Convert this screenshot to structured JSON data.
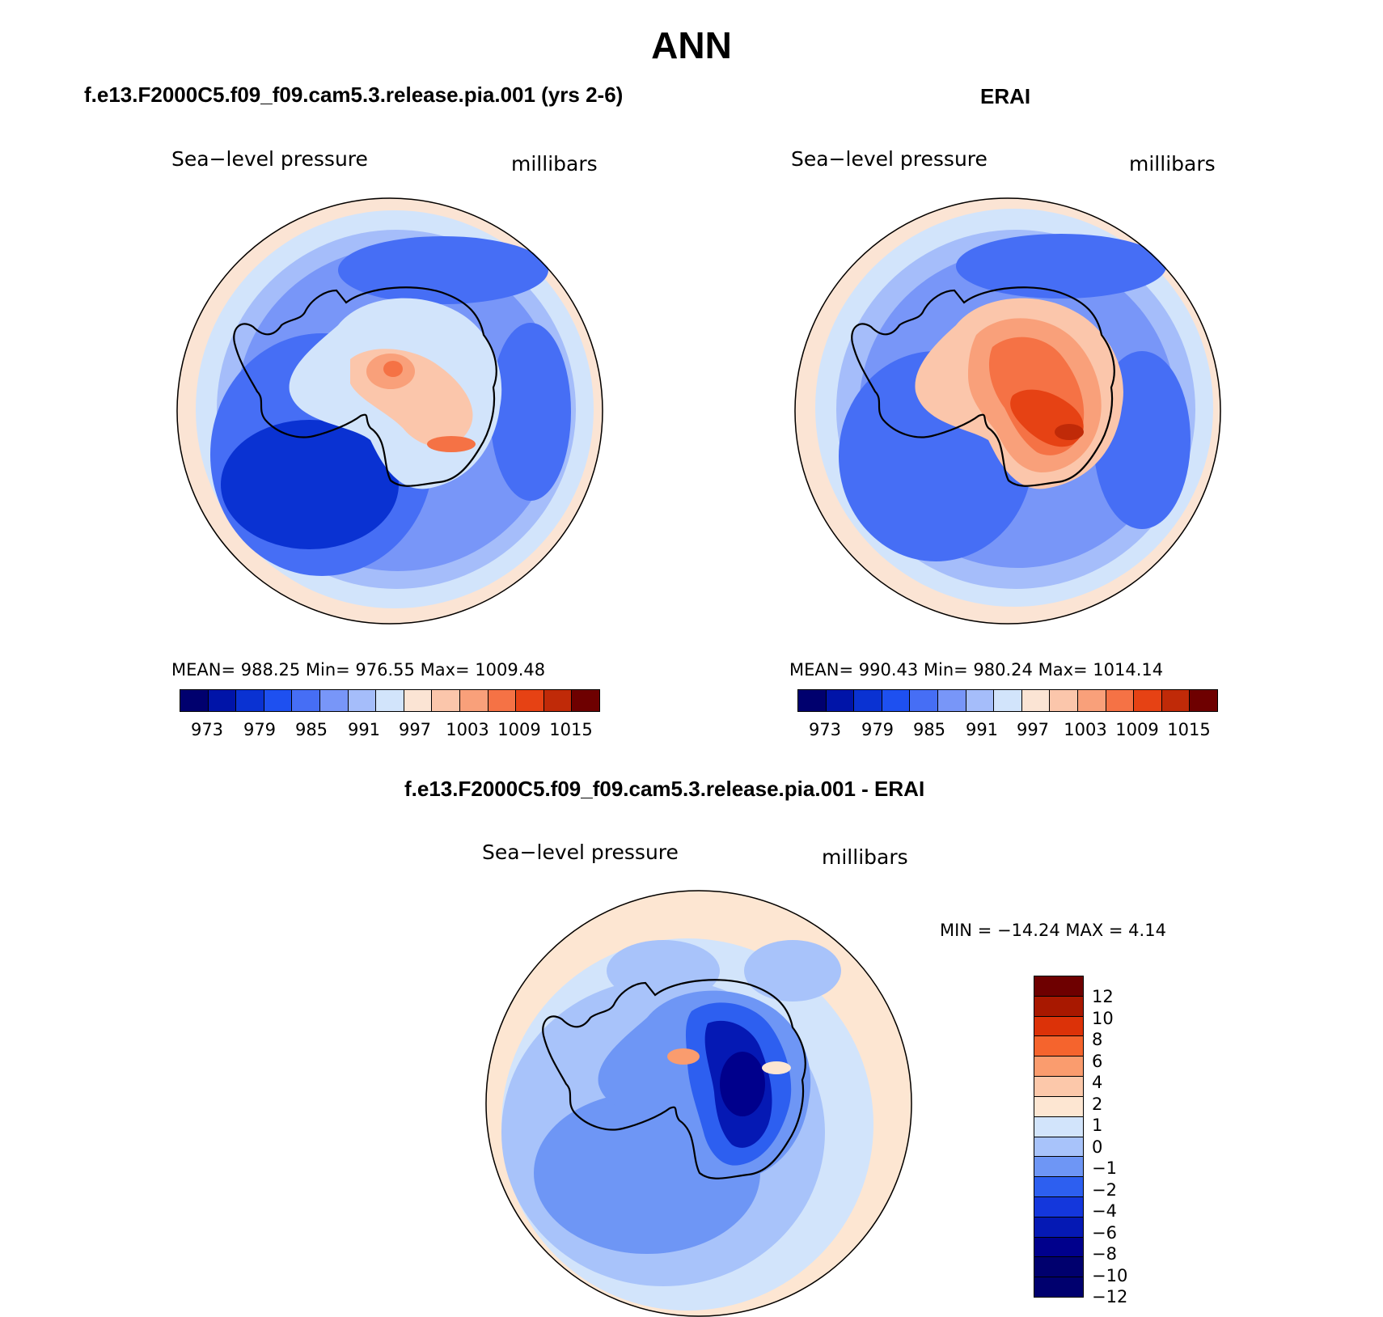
{
  "title": "ANN",
  "colors": {
    "diverging": [
      "#00006e",
      "#0014a8",
      "#0a32d2",
      "#1e50f0",
      "#466ef5",
      "#7896f8",
      "#a5bdfa",
      "#d2e4fb",
      "#fbe4d4",
      "#fbc6ab",
      "#f9a07a",
      "#f57245",
      "#e64214",
      "#c02a08",
      "#960000",
      "#6e0000"
    ],
    "diff": [
      "#6e0000",
      "#a81800",
      "#dc3208",
      "#f5642d",
      "#fa9c6e",
      "#fcc8aa",
      "#fde6d2",
      "#d2e4fb",
      "#a8c3fa",
      "#6e96f5",
      "#2d5ff0",
      "#1437dc",
      "#0519b4",
      "#00008c"
    ],
    "coast": "#000000"
  },
  "panels": [
    {
      "id": "model",
      "title": "f.e13.F2000C5.f09_f09.cam5.3.release.pia.001 (yrs 2-6)",
      "left_label": "Sea−level pressure",
      "right_label": "millibars",
      "stats": "MEAN=  988.25    Min=  976.55    Max=  1009.48",
      "ticks": [
        "973",
        "979",
        "985",
        "991",
        "997",
        "1003",
        "1009",
        "1015"
      ]
    },
    {
      "id": "obs",
      "title": "ERAI",
      "left_label": "Sea−level pressure",
      "right_label": "millibars",
      "stats": "MEAN=  990.43    Min=  980.24    Max=  1014.14",
      "ticks": [
        "973",
        "979",
        "985",
        "991",
        "997",
        "1003",
        "1009",
        "1015"
      ]
    },
    {
      "id": "diff",
      "title": "f.e13.F2000C5.f09_f09.cam5.3.release.pia.001 - ERAI",
      "left_label": "Sea−level pressure",
      "right_label": "millibars",
      "stats": "MIN  =  −14.24  MAX  =      4.14",
      "ticks": [
        "12",
        "10",
        "8",
        "6",
        "4",
        "2",
        "1",
        "0",
        "−1",
        "−2",
        "−4",
        "−6",
        "−8",
        "−10",
        "−12"
      ]
    }
  ]
}
